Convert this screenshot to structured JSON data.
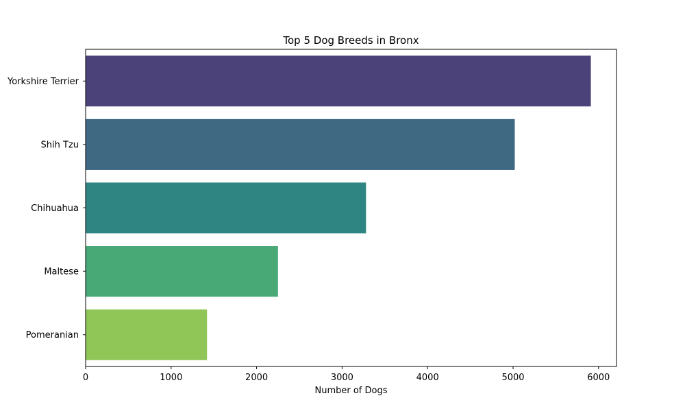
{
  "chart_data": {
    "type": "bar",
    "orientation": "horizontal",
    "title": "Top 5 Dog Breeds in Bronx",
    "xlabel": "Number of Dogs",
    "ylabel": "",
    "categories": [
      "Yorkshire Terrier",
      "Shih Tzu",
      "Chihuahua",
      "Maltese",
      "Pomeranian"
    ],
    "values": [
      5910,
      5020,
      3280,
      2250,
      1420
    ],
    "colors": [
      "#4b427a",
      "#3f6883",
      "#2e8581",
      "#48a977",
      "#90c558"
    ],
    "xlim": [
      0,
      6210
    ],
    "xticks": [
      0,
      1000,
      2000,
      3000,
      4000,
      5000,
      6000
    ],
    "grid": false,
    "legend": "none"
  }
}
